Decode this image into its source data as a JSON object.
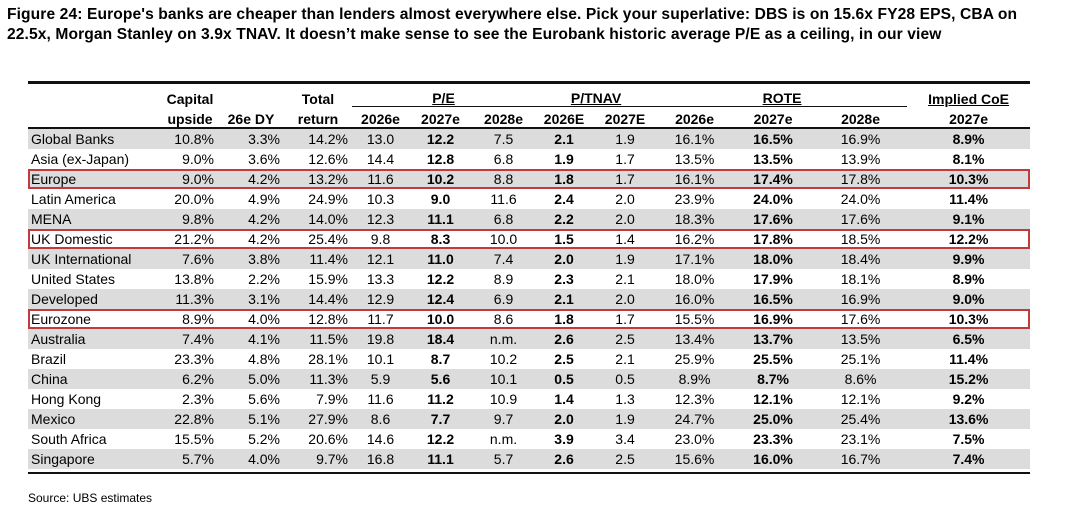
{
  "title": "Figure 24: Europe's banks are cheaper than lenders almost everywhere else. Pick your superlative: DBS is on 15.6x FY28 EPS, CBA on 22.5x, Morgan Stanley on 3.9x TNAV. It doesn’t make sense to see the Eurobank historic average P/E as a ceiling, in our view",
  "headers": {
    "capital": "Capital",
    "upside": "upside",
    "dy": "26e DY",
    "total": "Total",
    "return": "return",
    "pe": "P/E",
    "ptnav": "P/TNAV",
    "rote": "ROTE",
    "implied_coe": "Implied CoE",
    "pe_2026": "2026e",
    "pe_2027": "2027e",
    "pe_2028": "2028e",
    "ptnav_2026": "2026E",
    "ptnav_2027": "2027E",
    "rote_2026": "2026e",
    "rote_2027": "2027e",
    "rote_2028": "2028e",
    "coe_2027": "2027e"
  },
  "rows": [
    {
      "region": "Global Banks",
      "upside": "10.8%",
      "dy": "3.3%",
      "total": "14.2%",
      "pe26": "13.0",
      "pe27": "12.2",
      "pe28": "7.5",
      "pt26": "2.1",
      "pt27": "1.9",
      "r26": "16.1%",
      "r27": "16.5%",
      "r28": "16.9%",
      "coe": "8.9%"
    },
    {
      "region": "Asia (ex-Japan)",
      "upside": "9.0%",
      "dy": "3.6%",
      "total": "12.6%",
      "pe26": "14.4",
      "pe27": "12.8",
      "pe28": "6.8",
      "pt26": "1.9",
      "pt27": "1.7",
      "r26": "13.5%",
      "r27": "13.5%",
      "r28": "13.9%",
      "coe": "8.1%"
    },
    {
      "region": "Europe",
      "upside": "9.0%",
      "dy": "4.2%",
      "total": "13.2%",
      "pe26": "11.6",
      "pe27": "10.2",
      "pe28": "8.8",
      "pt26": "1.8",
      "pt27": "1.7",
      "r26": "16.1%",
      "r27": "17.4%",
      "r28": "17.8%",
      "coe": "10.3%"
    },
    {
      "region": "Latin America",
      "upside": "20.0%",
      "dy": "4.9%",
      "total": "24.9%",
      "pe26": "10.3",
      "pe27": "9.0",
      "pe28": "11.6",
      "pt26": "2.4",
      "pt27": "2.0",
      "r26": "23.9%",
      "r27": "24.0%",
      "r28": "24.0%",
      "coe": "11.4%"
    },
    {
      "region": "MENA",
      "upside": "9.8%",
      "dy": "4.2%",
      "total": "14.0%",
      "pe26": "12.3",
      "pe27": "11.1",
      "pe28": "6.8",
      "pt26": "2.2",
      "pt27": "2.0",
      "r26": "18.3%",
      "r27": "17.6%",
      "r28": "17.6%",
      "coe": "9.1%"
    },
    {
      "region": "UK Domestic",
      "upside": "21.2%",
      "dy": "4.2%",
      "total": "25.4%",
      "pe26": "9.8",
      "pe27": "8.3",
      "pe28": "10.0",
      "pt26": "1.5",
      "pt27": "1.4",
      "r26": "16.2%",
      "r27": "17.8%",
      "r28": "18.5%",
      "coe": "12.2%"
    },
    {
      "region": "UK International",
      "upside": "7.6%",
      "dy": "3.8%",
      "total": "11.4%",
      "pe26": "12.1",
      "pe27": "11.0",
      "pe28": "7.4",
      "pt26": "2.0",
      "pt27": "1.9",
      "r26": "17.1%",
      "r27": "18.0%",
      "r28": "18.4%",
      "coe": "9.9%"
    },
    {
      "region": "United States",
      "upside": "13.8%",
      "dy": "2.2%",
      "total": "15.9%",
      "pe26": "13.3",
      "pe27": "12.2",
      "pe28": "8.9",
      "pt26": "2.3",
      "pt27": "2.1",
      "r26": "18.0%",
      "r27": "17.9%",
      "r28": "18.1%",
      "coe": "8.9%"
    },
    {
      "region": "Developed",
      "upside": "11.3%",
      "dy": "3.1%",
      "total": "14.4%",
      "pe26": "12.9",
      "pe27": "12.4",
      "pe28": "6.9",
      "pt26": "2.1",
      "pt27": "2.0",
      "r26": "16.0%",
      "r27": "16.5%",
      "r28": "16.9%",
      "coe": "9.0%"
    },
    {
      "region": "Eurozone",
      "upside": "8.9%",
      "dy": "4.0%",
      "total": "12.8%",
      "pe26": "11.7",
      "pe27": "10.0",
      "pe28": "8.6",
      "pt26": "1.8",
      "pt27": "1.7",
      "r26": "15.5%",
      "r27": "16.9%",
      "r28": "17.6%",
      "coe": "10.3%"
    },
    {
      "region": "Australia",
      "upside": "7.4%",
      "dy": "4.1%",
      "total": "11.5%",
      "pe26": "19.8",
      "pe27": "18.4",
      "pe28": "n.m.",
      "pt26": "2.6",
      "pt27": "2.5",
      "r26": "13.4%",
      "r27": "13.7%",
      "r28": "13.5%",
      "coe": "6.5%"
    },
    {
      "region": "Brazil",
      "upside": "23.3%",
      "dy": "4.8%",
      "total": "28.1%",
      "pe26": "10.1",
      "pe27": "8.7",
      "pe28": "10.2",
      "pt26": "2.5",
      "pt27": "2.1",
      "r26": "25.9%",
      "r27": "25.5%",
      "r28": "25.1%",
      "coe": "11.4%"
    },
    {
      "region": "China",
      "upside": "6.2%",
      "dy": "5.0%",
      "total": "11.3%",
      "pe26": "5.9",
      "pe27": "5.6",
      "pe28": "10.1",
      "pt26": "0.5",
      "pt27": "0.5",
      "r26": "8.9%",
      "r27": "8.7%",
      "r28": "8.6%",
      "coe": "15.2%"
    },
    {
      "region": "Hong Kong",
      "upside": "2.3%",
      "dy": "5.6%",
      "total": "7.9%",
      "pe26": "11.6",
      "pe27": "11.2",
      "pe28": "10.9",
      "pt26": "1.4",
      "pt27": "1.3",
      "r26": "12.3%",
      "r27": "12.1%",
      "r28": "12.1%",
      "coe": "9.2%"
    },
    {
      "region": "Mexico",
      "upside": "22.8%",
      "dy": "5.1%",
      "total": "27.9%",
      "pe26": "8.6",
      "pe27": "7.7",
      "pe28": "9.7",
      "pt26": "2.0",
      "pt27": "1.9",
      "r26": "24.7%",
      "r27": "25.0%",
      "r28": "25.4%",
      "coe": "13.6%"
    },
    {
      "region": "South Africa",
      "upside": "15.5%",
      "dy": "5.2%",
      "total": "20.6%",
      "pe26": "14.6",
      "pe27": "12.2",
      "pe28": "n.m.",
      "pt26": "3.9",
      "pt27": "3.4",
      "r26": "23.0%",
      "r27": "23.3%",
      "r28": "23.1%",
      "coe": "7.5%"
    },
    {
      "region": "Singapore",
      "upside": "5.7%",
      "dy": "4.0%",
      "total": "9.7%",
      "pe26": "16.8",
      "pe27": "11.1",
      "pe28": "5.7",
      "pt26": "2.6",
      "pt27": "2.5",
      "r26": "15.6%",
      "r27": "16.0%",
      "r28": "16.7%",
      "coe": "7.4%"
    }
  ],
  "highlight_color": "#c23b3b",
  "shade_color": "#dcdcdc",
  "source": "Source: UBS estimates"
}
